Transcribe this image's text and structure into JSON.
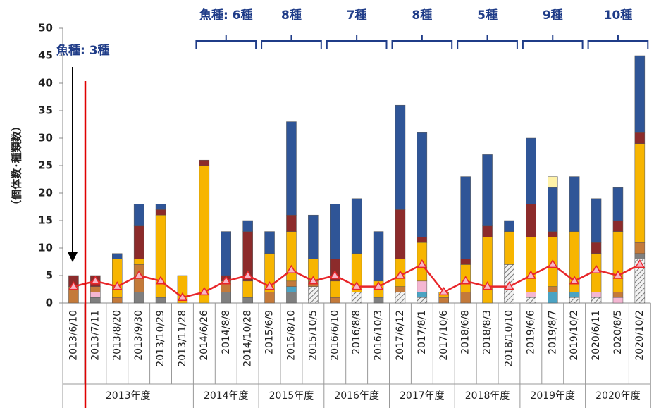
{
  "chart_data": {
    "type": "bar",
    "stacked": true,
    "y_label": "（個体数･種類数）",
    "categories": [
      "2013/6/10",
      "2013/7/11",
      "2013/8/20",
      "2013/9/30",
      "2013/10/29",
      "2013/11/28",
      "2014/6/26",
      "2014/8/8",
      "2014/10/28",
      "2015/6/9",
      "2015/8/10",
      "2015/10/5",
      "2016/6/10",
      "2016/8/8",
      "2016/10/3",
      "2017/6/12",
      "2017/8/1",
      "2017/10/6",
      "2018/6/8",
      "2018/8/3",
      "2018/10/10",
      "2019/6/6",
      "2019/8/7",
      "2019/10/2",
      "2020/6/11",
      "2020/8/5",
      "2020/10/2"
    ],
    "fiscal_years": [
      "2013年度",
      "2014年度",
      "2015年度",
      "2016年度",
      "2017年度",
      "2018年度",
      "2019年度",
      "2020年度"
    ],
    "species_annotations": [
      "魚種: 3種",
      "魚種:  6種",
      "8種",
      "7種",
      "8種",
      "5種",
      "9種",
      "10種"
    ],
    "series": [
      {
        "color": "#d9d9d9",
        "hatch": true,
        "values": [
          0,
          0,
          0,
          0,
          0,
          0,
          0,
          0,
          0,
          0,
          0,
          3,
          0,
          2,
          0,
          2,
          1,
          0,
          0,
          0,
          7,
          1,
          0,
          1,
          1,
          0,
          8
        ]
      },
      {
        "color": "#7f7f7f",
        "values": [
          0,
          1,
          0,
          2,
          1,
          0,
          0,
          2,
          1,
          0,
          2,
          0,
          0,
          0,
          1,
          0,
          0,
          0,
          0,
          0,
          0,
          0,
          0,
          0,
          0,
          0,
          1
        ]
      },
      {
        "color": "#4ba3c3",
        "values": [
          0,
          0,
          0,
          0,
          0,
          0,
          0,
          0,
          0,
          0,
          1,
          0,
          0,
          0,
          0,
          0,
          1,
          0,
          0,
          0,
          0,
          0,
          2,
          1,
          0,
          0,
          0
        ]
      },
      {
        "color": "#f4b6d2",
        "values": [
          0,
          1,
          0,
          0,
          0,
          0,
          0,
          0,
          0,
          0,
          0,
          0,
          0,
          0,
          0,
          0,
          2,
          0,
          0,
          0,
          0,
          1,
          0,
          0,
          1,
          1,
          0
        ]
      },
      {
        "color": "#c47a3a",
        "values": [
          3,
          1,
          1,
          5,
          0,
          0,
          0,
          2,
          0,
          2,
          1,
          1,
          1,
          0,
          0,
          1,
          0,
          1,
          2,
          0,
          0,
          0,
          1,
          0,
          0,
          1,
          2
        ]
      },
      {
        "color": "#f7b500",
        "values": [
          0,
          0,
          7,
          1,
          15,
          5,
          25,
          0,
          3,
          7,
          9,
          4,
          3,
          7,
          3,
          5,
          7,
          1,
          5,
          12,
          6,
          10,
          9,
          11,
          7,
          11,
          18
        ]
      },
      {
        "color": "#8c2b2b",
        "values": [
          2,
          2,
          0,
          6,
          1,
          0,
          1,
          1,
          9,
          0,
          3,
          0,
          4,
          0,
          0,
          9,
          1,
          0,
          1,
          2,
          0,
          6,
          1,
          0,
          2,
          2,
          2
        ]
      },
      {
        "color": "#2f5597",
        "values": [
          0,
          0,
          1,
          4,
          1,
          0,
          0,
          8,
          2,
          4,
          17,
          8,
          10,
          10,
          9,
          19,
          19,
          0,
          15,
          13,
          2,
          12,
          8,
          10,
          8,
          6,
          14
        ]
      },
      {
        "color": "#fff2a8",
        "values": [
          0,
          0,
          0,
          0,
          0,
          0,
          0,
          0,
          0,
          0,
          0,
          0,
          0,
          0,
          0,
          0,
          0,
          0,
          0,
          0,
          0,
          0,
          2,
          0,
          0,
          0,
          0
        ]
      }
    ],
    "line": {
      "color": "#e8262a",
      "marker_color": "#f7b6c8",
      "values": [
        3,
        4,
        3,
        5,
        4,
        1,
        2,
        4,
        5,
        3,
        6,
        4,
        5,
        3,
        3,
        5,
        7,
        2,
        4,
        3,
        3,
        5,
        7,
        4,
        6,
        5,
        7
      ]
    },
    "ylim": [
      0,
      50
    ],
    "yticks": [
      0,
      5,
      10,
      15,
      20,
      25,
      30,
      35,
      40,
      45,
      50
    ],
    "grid": false
  }
}
